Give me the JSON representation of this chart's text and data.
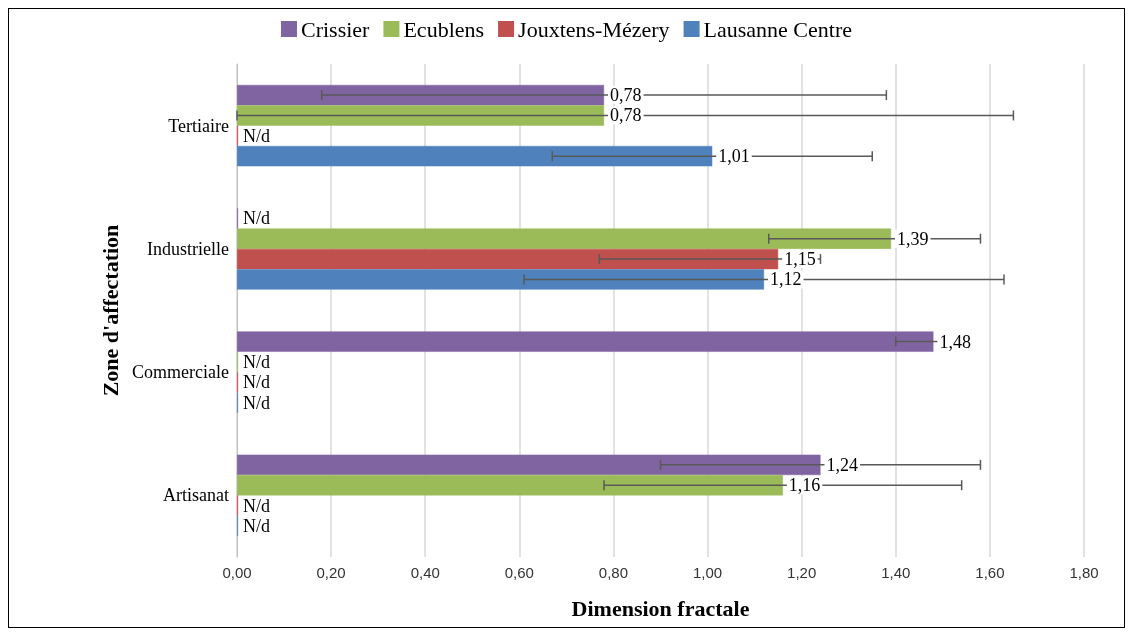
{
  "chart_data": {
    "type": "bar",
    "orientation": "horizontal",
    "xlabel": "Dimension fractale",
    "ylabel": "Zone d'affectation",
    "categories": [
      "Tertiaire",
      "Industrielle",
      "Commerciale",
      "Artisanat"
    ],
    "series": [
      {
        "name": "Crissier",
        "color": "#8064a2",
        "values": [
          0.78,
          0,
          1.48,
          1.24
        ],
        "errors": [
          0.6,
          null,
          0.08,
          0.34
        ],
        "value_labels": [
          "0,78",
          "N/d",
          "1,48",
          "1,24"
        ]
      },
      {
        "name": "Ecublens",
        "color": "#9bbb59",
        "values": [
          0.78,
          1.39,
          0,
          1.16
        ],
        "errors": [
          [
            0,
            1.65
          ],
          [
            1.13,
            1.58
          ],
          null,
          0.38
        ],
        "value_labels": [
          "0,78",
          "1,39",
          "N/d",
          "1,16"
        ]
      },
      {
        "name": "Jouxtens-Mézery",
        "color": "#c0504d",
        "values": [
          0,
          1.15,
          0,
          0
        ],
        "errors": [
          null,
          [
            0.77,
            1.24
          ],
          null,
          null
        ],
        "value_labels": [
          "N/d",
          "1,15",
          "N/d",
          "N/d"
        ]
      },
      {
        "name": "Lausanne Centre",
        "color": "#4f81bd",
        "values": [
          1.01,
          1.12,
          0,
          0
        ],
        "errors": [
          0.34,
          0.51,
          null,
          null
        ],
        "value_labels": [
          "1,01",
          "1,12",
          "N/d",
          "N/d"
        ]
      }
    ],
    "xlim": [
      0,
      1.8
    ],
    "xticks": [
      {
        "value": 0,
        "label": "0,00"
      },
      {
        "value": 0.2,
        "label": "0,20"
      },
      {
        "value": 0.4,
        "label": "0,40"
      },
      {
        "value": 0.6,
        "label": "0,60"
      },
      {
        "value": 0.8,
        "label": "0,80"
      },
      {
        "value": 1,
        "label": "1,00"
      },
      {
        "value": 1.2,
        "label": "1,20"
      },
      {
        "value": 1.4,
        "label": "1,40"
      },
      {
        "value": 1.6,
        "label": "1,60"
      },
      {
        "value": 1.8,
        "label": "1,80"
      }
    ],
    "grid": "x",
    "legend": "top"
  }
}
